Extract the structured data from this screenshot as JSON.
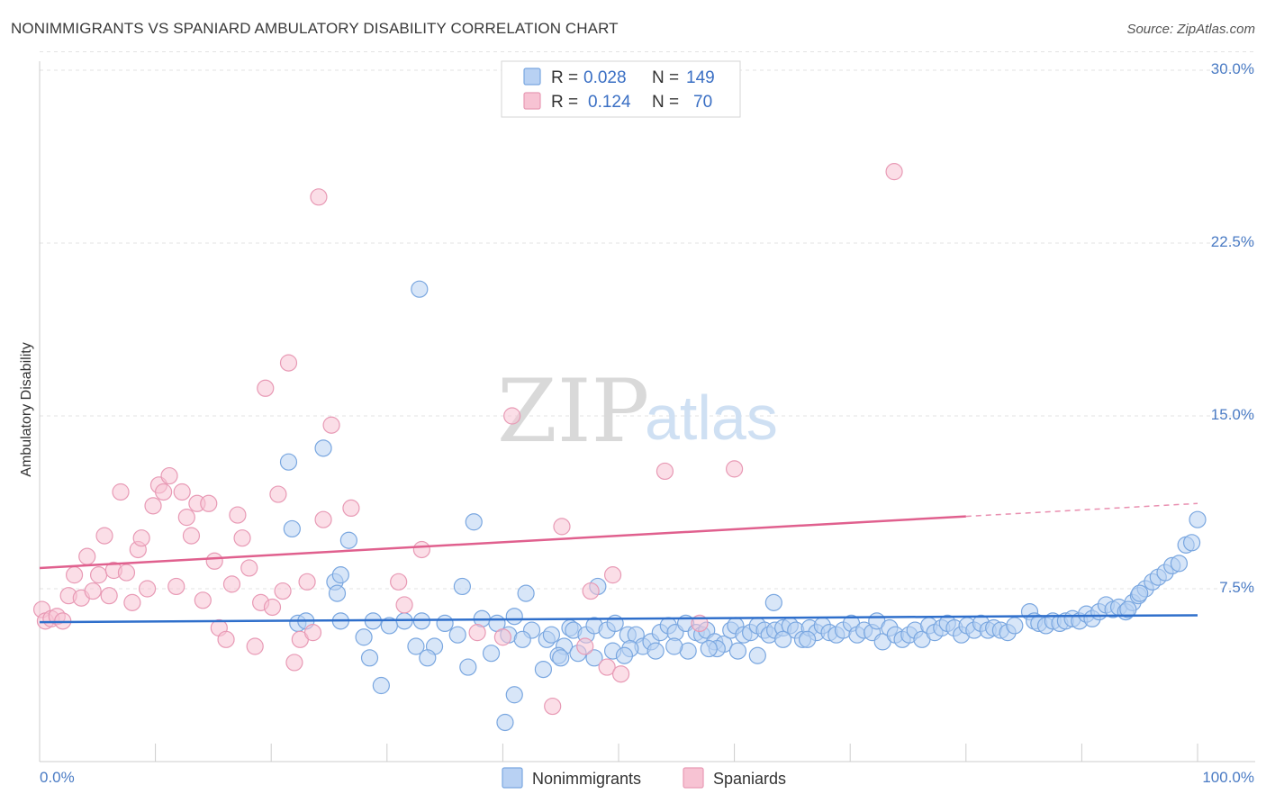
{
  "header": {
    "title": "NONIMMIGRANTS VS SPANIARD AMBULATORY DISABILITY CORRELATION CHART",
    "source": "Source: ZipAtlas.com"
  },
  "watermark": {
    "zip": "ZIP",
    "atlas": "atlas"
  },
  "chart_data": {
    "type": "scatter",
    "title": "NONIMMIGRANTS VS SPANIARD AMBULATORY DISABILITY CORRELATION CHART",
    "xlabel": "",
    "ylabel": "Ambulatory Disability",
    "xlim": [
      0,
      100
    ],
    "ylim": [
      0,
      30
    ],
    "x_tick_labels": [
      "0.0%",
      "100.0%"
    ],
    "y_ticks": [
      7.5,
      15.0,
      22.5,
      30.0
    ],
    "y_tick_labels": [
      "7.5%",
      "15.0%",
      "22.5%",
      "30.0%"
    ],
    "grid": true,
    "legend_position": "top-center",
    "series": [
      {
        "name": "Nonimmigrants",
        "color": "#7aa7e0",
        "fill": "#b8d1f3",
        "line_color": "#2f6fcb",
        "r_label": "R =",
        "r_value": "0.028",
        "n_label": "N =",
        "n_value": "149",
        "trend": {
          "x0": 0,
          "y0": 6.05,
          "x1": 100,
          "y1": 6.35
        },
        "points": [
          [
            32.8,
            20.5
          ],
          [
            21.5,
            13.0
          ],
          [
            24.5,
            13.6
          ],
          [
            21.8,
            10.1
          ],
          [
            37.5,
            10.4
          ],
          [
            26.7,
            9.6
          ],
          [
            100,
            10.5
          ],
          [
            25.5,
            7.8
          ],
          [
            26.0,
            8.1
          ],
          [
            25.7,
            7.3
          ],
          [
            36.5,
            7.6
          ],
          [
            42.0,
            7.3
          ],
          [
            48.2,
            7.6
          ],
          [
            63.4,
            6.9
          ],
          [
            22.3,
            6.0
          ],
          [
            26.0,
            6.1
          ],
          [
            28.8,
            6.1
          ],
          [
            31.5,
            6.1
          ],
          [
            33.0,
            6.1
          ],
          [
            35.0,
            6.0
          ],
          [
            28.0,
            5.4
          ],
          [
            30.2,
            5.9
          ],
          [
            32.5,
            5.0
          ],
          [
            34.1,
            5.0
          ],
          [
            36.1,
            5.5
          ],
          [
            38.2,
            6.2
          ],
          [
            39.5,
            6.0
          ],
          [
            40.5,
            5.5
          ],
          [
            41.0,
            6.3
          ],
          [
            42.5,
            5.7
          ],
          [
            43.8,
            5.3
          ],
          [
            44.2,
            5.5
          ],
          [
            45.3,
            5.0
          ],
          [
            45.8,
            5.8
          ],
          [
            46.1,
            5.7
          ],
          [
            47.2,
            5.5
          ],
          [
            47.9,
            5.9
          ],
          [
            49.0,
            5.7
          ],
          [
            49.7,
            6.0
          ],
          [
            50.8,
            5.5
          ],
          [
            51.5,
            5.5
          ],
          [
            52.1,
            5.0
          ],
          [
            52.8,
            5.2
          ],
          [
            53.6,
            5.6
          ],
          [
            54.3,
            5.9
          ],
          [
            54.9,
            5.6
          ],
          [
            55.8,
            6.0
          ],
          [
            56.7,
            5.6
          ],
          [
            57.2,
            5.5
          ],
          [
            57.6,
            5.7
          ],
          [
            58.3,
            5.2
          ],
          [
            59.1,
            5.1
          ],
          [
            59.7,
            5.7
          ],
          [
            60.1,
            5.9
          ],
          [
            60.8,
            5.5
          ],
          [
            61.4,
            5.6
          ],
          [
            62.0,
            5.9
          ],
          [
            62.6,
            5.7
          ],
          [
            63.0,
            5.5
          ],
          [
            63.5,
            5.7
          ],
          [
            64.2,
            5.8
          ],
          [
            64.8,
            5.9
          ],
          [
            65.3,
            5.7
          ],
          [
            65.9,
            5.3
          ],
          [
            66.5,
            5.8
          ],
          [
            67.1,
            5.6
          ],
          [
            67.6,
            5.9
          ],
          [
            68.2,
            5.6
          ],
          [
            68.8,
            5.5
          ],
          [
            69.4,
            5.7
          ],
          [
            70.1,
            6.0
          ],
          [
            70.6,
            5.5
          ],
          [
            71.2,
            5.7
          ],
          [
            71.9,
            5.6
          ],
          [
            72.3,
            6.1
          ],
          [
            72.8,
            5.2
          ],
          [
            73.4,
            5.8
          ],
          [
            73.9,
            5.5
          ],
          [
            74.5,
            5.3
          ],
          [
            75.1,
            5.5
          ],
          [
            75.6,
            5.7
          ],
          [
            76.2,
            5.3
          ],
          [
            76.8,
            5.9
          ],
          [
            77.3,
            5.6
          ],
          [
            77.9,
            5.8
          ],
          [
            78.4,
            6.0
          ],
          [
            79.0,
            5.8
          ],
          [
            79.6,
            5.5
          ],
          [
            80.1,
            5.9
          ],
          [
            80.7,
            5.7
          ],
          [
            81.3,
            6.0
          ],
          [
            81.9,
            5.7
          ],
          [
            82.4,
            5.8
          ],
          [
            83.0,
            5.7
          ],
          [
            83.6,
            5.6
          ],
          [
            84.2,
            5.9
          ],
          [
            85.5,
            6.5
          ],
          [
            85.9,
            6.1
          ],
          [
            86.3,
            6.0
          ],
          [
            86.9,
            5.9
          ],
          [
            87.5,
            6.1
          ],
          [
            88.1,
            6.0
          ],
          [
            88.6,
            6.1
          ],
          [
            89.2,
            6.2
          ],
          [
            89.8,
            6.1
          ],
          [
            90.4,
            6.4
          ],
          [
            90.9,
            6.2
          ],
          [
            91.5,
            6.5
          ],
          [
            92.1,
            6.8
          ],
          [
            92.7,
            6.6
          ],
          [
            93.2,
            6.7
          ],
          [
            93.8,
            6.5
          ],
          [
            94.4,
            6.9
          ],
          [
            94.9,
            7.2
          ],
          [
            95.5,
            7.5
          ],
          [
            96.1,
            7.8
          ],
          [
            96.6,
            8.0
          ],
          [
            97.2,
            8.2
          ],
          [
            97.8,
            8.5
          ],
          [
            98.4,
            8.6
          ],
          [
            99.0,
            9.4
          ],
          [
            99.5,
            9.5
          ],
          [
            95.0,
            7.3
          ],
          [
            94.0,
            6.6
          ],
          [
            23.0,
            6.1
          ],
          [
            28.5,
            4.5
          ],
          [
            33.5,
            4.5
          ],
          [
            37.0,
            4.1
          ],
          [
            39.0,
            4.7
          ],
          [
            41.7,
            5.3
          ],
          [
            43.5,
            4.0
          ],
          [
            44.8,
            4.6
          ],
          [
            46.5,
            4.7
          ],
          [
            47.9,
            4.5
          ],
          [
            49.5,
            4.8
          ],
          [
            51.0,
            4.9
          ],
          [
            53.2,
            4.8
          ],
          [
            56.0,
            4.8
          ],
          [
            58.5,
            4.9
          ],
          [
            60.3,
            4.8
          ],
          [
            62.0,
            4.6
          ],
          [
            64.2,
            5.3
          ],
          [
            66.3,
            5.3
          ],
          [
            29.5,
            3.3
          ],
          [
            41.0,
            2.9
          ],
          [
            45.0,
            4.5
          ],
          [
            50.5,
            4.6
          ],
          [
            54.8,
            5.0
          ],
          [
            57.8,
            4.9
          ],
          [
            40.2,
            1.7
          ]
        ]
      },
      {
        "name": "Spaniards",
        "color": "#e89ab5",
        "fill": "#f7c3d3",
        "line_color": "#e0608e",
        "r_label": "R =",
        "r_value": "0.124",
        "n_label": "N =",
        "n_value": "70",
        "trend": {
          "x0": 0,
          "y0": 8.4,
          "x1": 100,
          "y1": 11.2,
          "solid_until": 80
        },
        "points": [
          [
            0.2,
            6.6
          ],
          [
            0.5,
            6.1
          ],
          [
            1.0,
            6.2
          ],
          [
            1.5,
            6.3
          ],
          [
            2.0,
            6.1
          ],
          [
            2.5,
            7.2
          ],
          [
            3.0,
            8.1
          ],
          [
            3.6,
            7.1
          ],
          [
            4.1,
            8.9
          ],
          [
            4.6,
            7.4
          ],
          [
            5.1,
            8.1
          ],
          [
            5.6,
            9.8
          ],
          [
            6.0,
            7.2
          ],
          [
            6.4,
            8.3
          ],
          [
            7.0,
            11.7
          ],
          [
            7.5,
            8.2
          ],
          [
            8.0,
            6.9
          ],
          [
            8.5,
            9.2
          ],
          [
            8.8,
            9.7
          ],
          [
            9.3,
            7.5
          ],
          [
            9.8,
            11.1
          ],
          [
            10.3,
            12.0
          ],
          [
            10.7,
            11.7
          ],
          [
            11.2,
            12.4
          ],
          [
            11.8,
            7.6
          ],
          [
            12.3,
            11.7
          ],
          [
            12.7,
            10.6
          ],
          [
            13.1,
            9.8
          ],
          [
            13.6,
            11.2
          ],
          [
            14.1,
            7.0
          ],
          [
            14.6,
            11.2
          ],
          [
            15.1,
            8.7
          ],
          [
            15.5,
            5.8
          ],
          [
            16.1,
            5.3
          ],
          [
            16.6,
            7.7
          ],
          [
            17.1,
            10.7
          ],
          [
            17.5,
            9.7
          ],
          [
            18.1,
            8.4
          ],
          [
            18.6,
            5.0
          ],
          [
            19.1,
            6.9
          ],
          [
            19.5,
            16.2
          ],
          [
            20.1,
            6.7
          ],
          [
            20.6,
            11.6
          ],
          [
            21.0,
            7.4
          ],
          [
            21.5,
            17.3
          ],
          [
            22.0,
            4.3
          ],
          [
            22.5,
            5.3
          ],
          [
            23.1,
            7.8
          ],
          [
            23.6,
            5.6
          ],
          [
            24.1,
            24.5
          ],
          [
            24.5,
            10.5
          ],
          [
            25.2,
            14.6
          ],
          [
            26.9,
            11.0
          ],
          [
            31.0,
            7.8
          ],
          [
            31.5,
            6.8
          ],
          [
            33.0,
            9.2
          ],
          [
            37.8,
            5.6
          ],
          [
            40.0,
            5.4
          ],
          [
            40.8,
            15.0
          ],
          [
            44.3,
            2.4
          ],
          [
            45.1,
            10.2
          ],
          [
            47.1,
            5.0
          ],
          [
            47.6,
            7.4
          ],
          [
            49.0,
            4.1
          ],
          [
            49.5,
            8.1
          ],
          [
            50.2,
            3.8
          ],
          [
            54.0,
            12.6
          ],
          [
            57.0,
            6.0
          ],
          [
            60.0,
            12.7
          ],
          [
            73.8,
            25.6
          ]
        ]
      }
    ]
  }
}
